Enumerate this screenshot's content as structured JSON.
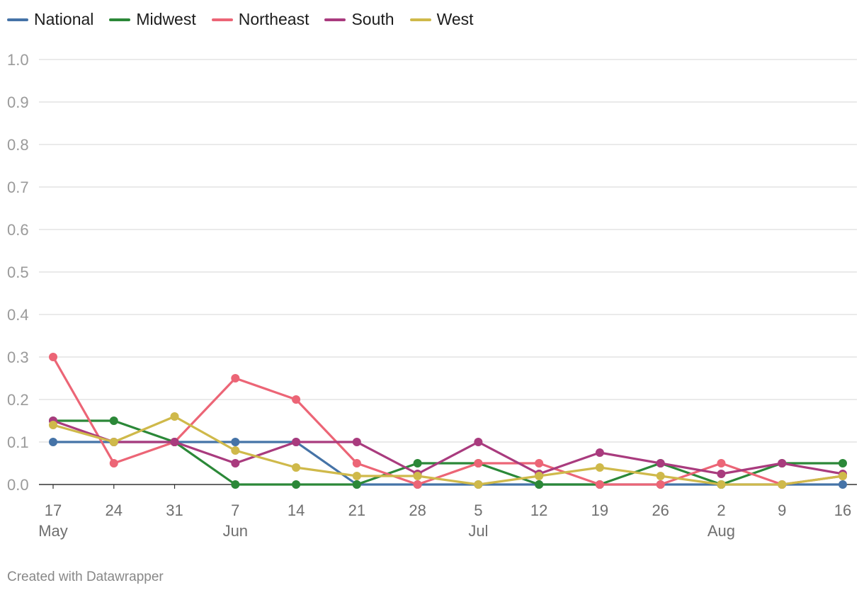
{
  "chart_data": {
    "type": "line",
    "title": "",
    "xlabel": "",
    "ylabel": "",
    "ylim": [
      0,
      1.0
    ],
    "yticks": [
      "0.0",
      "0.1",
      "0.2",
      "0.3",
      "0.4",
      "0.5",
      "0.6",
      "0.7",
      "0.8",
      "0.9",
      "1.0"
    ],
    "x": [
      "May 17",
      "May 24",
      "May 31",
      "Jun 7",
      "Jun 14",
      "Jun 21",
      "Jun 28",
      "Jul 5",
      "Jul 12",
      "Jul 19",
      "Jul 26",
      "Aug 2",
      "Aug 9",
      "Aug 16"
    ],
    "x_tick_days": [
      "17",
      "24",
      "31",
      "7",
      "14",
      "21",
      "28",
      "5",
      "12",
      "19",
      "26",
      "2",
      "9",
      "16"
    ],
    "x_tick_months": [
      "May",
      "",
      "",
      "Jun",
      "",
      "",
      "",
      "Jul",
      "",
      "",
      "",
      "Aug",
      "",
      ""
    ],
    "grid": true,
    "legend_position": "top-left",
    "series": [
      {
        "name": "National",
        "color": "#4573a7",
        "values": [
          0.1,
          0.1,
          0.1,
          0.1,
          0.1,
          0,
          0,
          0,
          0,
          0,
          0,
          0,
          0,
          0
        ]
      },
      {
        "name": "Midwest",
        "color": "#2b8838",
        "values": [
          0.15,
          0.15,
          0.1,
          0,
          0,
          0,
          0.05,
          0.05,
          0,
          0,
          0.05,
          0,
          0.05,
          0.05
        ]
      },
      {
        "name": "Northeast",
        "color": "#ec6576",
        "values": [
          0.3,
          0.05,
          0.1,
          0.25,
          0.2,
          0.05,
          0,
          0.05,
          0.05,
          0,
          0,
          0.05,
          0,
          0.02
        ]
      },
      {
        "name": "South",
        "color": "#a93b7e",
        "values": [
          0.15,
          0.1,
          0.1,
          0.05,
          0.1,
          0.1,
          0.025,
          0.1,
          0.025,
          0.075,
          0.05,
          0.025,
          0.05,
          0.025
        ]
      },
      {
        "name": "West",
        "color": "#cfb94a",
        "values": [
          0.14,
          0.1,
          0.16,
          0.08,
          0.04,
          0.02,
          0.02,
          0,
          0.02,
          0.04,
          0.02,
          0,
          0,
          0.02
        ]
      }
    ]
  },
  "footer": {
    "credit": "Created with Datawrapper"
  }
}
